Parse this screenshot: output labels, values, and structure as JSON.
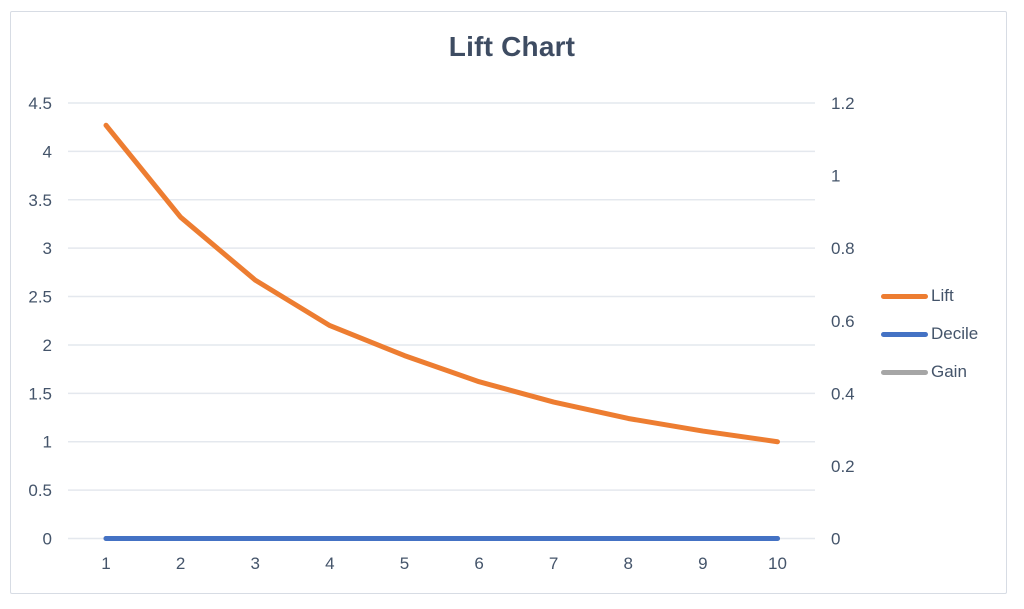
{
  "window": {
    "background": "#ffffff",
    "frame_border_color": "#d7dce4"
  },
  "chart_data": {
    "type": "line",
    "title": "Lift Chart",
    "title_color": "#3e4c62",
    "x": [
      1,
      2,
      3,
      4,
      5,
      6,
      7,
      8,
      9,
      10
    ],
    "x_tick_labels": [
      "1",
      "2",
      "3",
      "4",
      "5",
      "6",
      "7",
      "8",
      "9",
      "10"
    ],
    "left_axis": {
      "min": 0,
      "max": 4.5,
      "tick_labels": [
        "4.5",
        "4",
        "3.5",
        "3",
        "2.5",
        "2",
        "1.5",
        "1",
        "0.5",
        "0"
      ]
    },
    "right_axis": {
      "min": 0,
      "max": 1.2,
      "tick_labels": [
        "1.2",
        "1",
        "0.8",
        "0.6",
        "0.4",
        "0.2",
        "0"
      ]
    },
    "series": [
      {
        "name": "Lift",
        "color": "#ED7D31",
        "axis": "left",
        "values": [
          4.27,
          3.32,
          2.67,
          2.2,
          1.89,
          1.62,
          1.41,
          1.24,
          1.11,
          1.0
        ]
      },
      {
        "name": "Decile",
        "color": "#4472C4",
        "axis": "left",
        "values": [
          0,
          0,
          0,
          0,
          0,
          0,
          0,
          0,
          0,
          0
        ]
      },
      {
        "name": "Gain",
        "color": "#A6A6A6",
        "axis": "left",
        "values": [
          0,
          0,
          0,
          0,
          0,
          0,
          0,
          0,
          0,
          0
        ]
      }
    ],
    "legend": {
      "position": "right",
      "entries": [
        "Lift",
        "Decile",
        "Gain"
      ]
    },
    "grid": true,
    "grid_color": "#e4e8ee",
    "axis_label_color": "#44546a"
  }
}
